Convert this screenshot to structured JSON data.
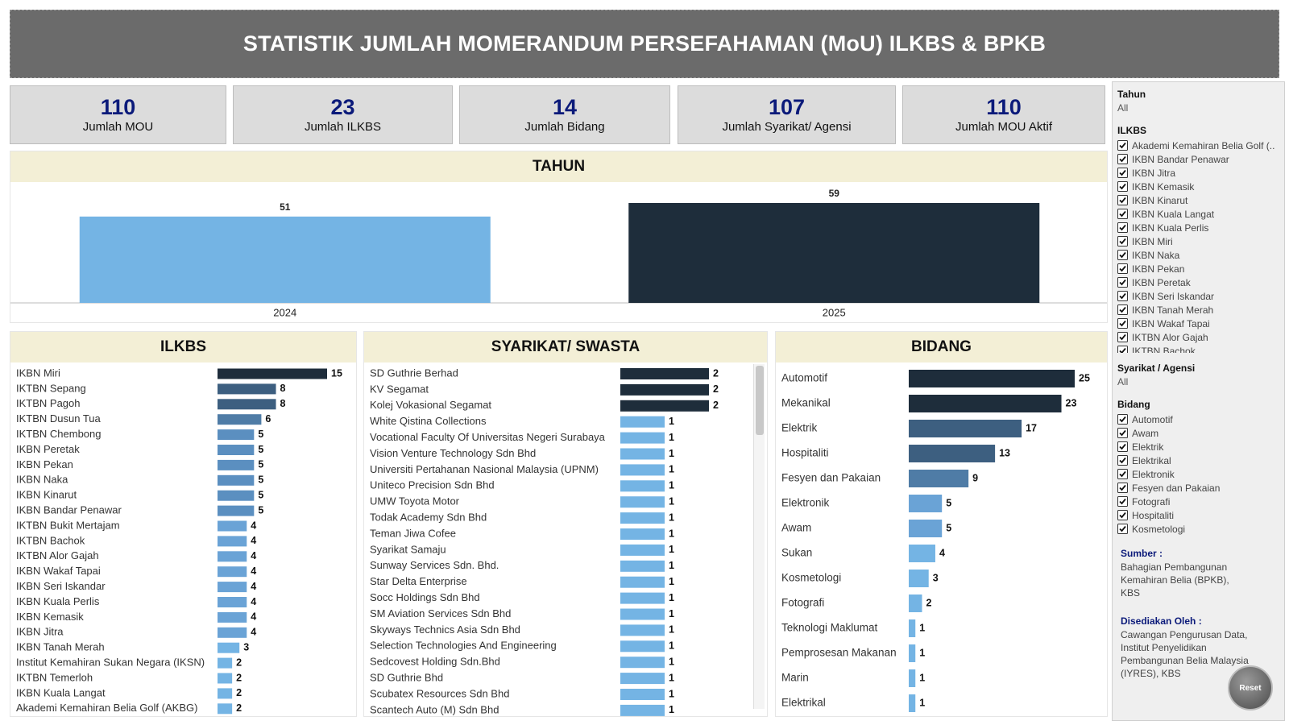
{
  "header": {
    "title": "STATISTIK JUMLAH MOMERANDUM PERSEFAHAMAN (MoU) ILKBS & BPKB"
  },
  "kpis": [
    {
      "value": 110,
      "label": "Jumlah MOU"
    },
    {
      "value": 23,
      "label": "Jumlah ILKBS"
    },
    {
      "value": 14,
      "label": "Jumlah Bidang"
    },
    {
      "value": 107,
      "label": "Jumlah Syarikat/ Agensi"
    },
    {
      "value": 110,
      "label": "Jumlah MOU Aktif"
    }
  ],
  "chart_data": [
    {
      "type": "bar",
      "orientation": "vertical",
      "title": "TAHUN",
      "categories": [
        "2024",
        "2025"
      ],
      "values": [
        51,
        59
      ],
      "colors": [
        "#74b4e4",
        "#1e2d3b"
      ]
    },
    {
      "type": "bar",
      "orientation": "horizontal",
      "title": "ILKBS",
      "categories": [
        "IKBN Miri",
        "IKTBN Sepang",
        "IKTBN Pagoh",
        "IKTBN Dusun Tua",
        "IKTBN Chembong",
        "IKBN Peretak",
        "IKBN Pekan",
        "IKBN Naka",
        "IKBN Kinarut",
        "IKBN Bandar Penawar",
        "IKTBN Bukit Mertajam",
        "IKTBN Bachok",
        "IKTBN Alor Gajah",
        "IKBN Wakaf Tapai",
        "IKBN Seri Iskandar",
        "IKBN Kuala Perlis",
        "IKBN Kemasik",
        "IKBN Jitra",
        "IKBN Tanah Merah",
        "Institut Kemahiran Sukan Negara (IKSN)",
        "IKTBN Temerloh",
        "IKBN Kuala Langat",
        "Akademi Kemahiran Belia Golf (AKBG)"
      ],
      "values": [
        15,
        8,
        8,
        6,
        5,
        5,
        5,
        5,
        5,
        5,
        4,
        4,
        4,
        4,
        4,
        4,
        4,
        4,
        3,
        2,
        2,
        2,
        2
      ],
      "colors": [
        "#1e2d3b",
        "#3d5f80",
        "#3d5f80",
        "#4f7ca6",
        "#5b8fc0",
        "#5b8fc0",
        "#5b8fc0",
        "#5b8fc0",
        "#5b8fc0",
        "#5b8fc0",
        "#6aa3d6",
        "#6aa3d6",
        "#6aa3d6",
        "#6aa3d6",
        "#6aa3d6",
        "#6aa3d6",
        "#6aa3d6",
        "#6aa3d6",
        "#74b4e4",
        "#74b4e4",
        "#74b4e4",
        "#74b4e4",
        "#74b4e4"
      ]
    },
    {
      "type": "bar",
      "orientation": "horizontal",
      "title": "SYARIKAT/ SWASTA",
      "categories": [
        "SD Guthrie Berhad",
        "KV Segamat",
        "Kolej Vokasional Segamat",
        "White Qistina Collections",
        "Vocational Faculty Of Universitas Negeri Surabaya",
        "Vision Venture Technology Sdn Bhd",
        "Universiti Pertahanan Nasional Malaysia (UPNM)",
        "Uniteco Precision Sdn Bhd",
        "UMW Toyota Motor",
        "Todak Academy Sdn Bhd",
        "Teman Jiwa Cofee",
        "Syarikat Samaju",
        "Sunway Services Sdn. Bhd.",
        "Star Delta Enterprise",
        "Socc Holdings Sdn Bhd",
        "SM Aviation Services Sdn Bhd",
        "Skyways Technics Asia Sdn Bhd",
        "Selection Technologies And Engineering",
        "Sedcovest Holding Sdn.Bhd",
        "SD Guthrie Bhd",
        "Scubatex Resources Sdn Bhd",
        "Scantech Auto (M) Sdn Bhd"
      ],
      "values": [
        2,
        2,
        2,
        1,
        1,
        1,
        1,
        1,
        1,
        1,
        1,
        1,
        1,
        1,
        1,
        1,
        1,
        1,
        1,
        1,
        1,
        1
      ],
      "colors": [
        "#1e2d3b",
        "#1e2d3b",
        "#1e2d3b",
        "#74b4e4",
        "#74b4e4",
        "#74b4e4",
        "#74b4e4",
        "#74b4e4",
        "#74b4e4",
        "#74b4e4",
        "#74b4e4",
        "#74b4e4",
        "#74b4e4",
        "#74b4e4",
        "#74b4e4",
        "#74b4e4",
        "#74b4e4",
        "#74b4e4",
        "#74b4e4",
        "#74b4e4",
        "#74b4e4",
        "#74b4e4"
      ]
    },
    {
      "type": "bar",
      "orientation": "horizontal",
      "title": "BIDANG",
      "categories": [
        "Automotif",
        "Mekanikal",
        "Elektrik",
        "Hospitaliti",
        "Fesyen dan Pakaian",
        "Elektronik",
        "Awam",
        "Sukan",
        "Kosmetologi",
        "Fotografi",
        "Teknologi Maklumat",
        "Pemprosesan Makanan",
        "Marin",
        "Elektrikal"
      ],
      "values": [
        25,
        23,
        17,
        13,
        9,
        5,
        5,
        4,
        3,
        2,
        1,
        1,
        1,
        1
      ],
      "colors": [
        "#1e2d3b",
        "#1e2d3b",
        "#3d5f80",
        "#3d5f80",
        "#4f7ca6",
        "#6aa3d6",
        "#6aa3d6",
        "#74b4e4",
        "#74b4e4",
        "#74b4e4",
        "#74b4e4",
        "#74b4e4",
        "#74b4e4",
        "#74b4e4"
      ]
    }
  ],
  "filters": {
    "tahun": {
      "label": "Tahun",
      "value": "All"
    },
    "ilkbs": {
      "label": "ILKBS",
      "items": [
        "Akademi Kemahiran Belia Golf (..",
        "IKBN Bandar Penawar",
        "IKBN Jitra",
        "IKBN Kemasik",
        "IKBN Kinarut",
        "IKBN Kuala Langat",
        "IKBN Kuala Perlis",
        "IKBN Miri",
        "IKBN Naka",
        "IKBN Pekan",
        "IKBN Peretak",
        "IKBN Seri Iskandar",
        "IKBN Tanah Merah",
        "IKBN Wakaf Tapai",
        "IKTBN Alor Gajah",
        "IKTBN Bachok"
      ]
    },
    "syarikat": {
      "label": "Syarikat / Agensi",
      "value": "All"
    },
    "bidang": {
      "label": "Bidang",
      "items": [
        "Automotif",
        "Awam",
        "Elektrik",
        "Elektrikal",
        "Elektronik",
        "Fesyen dan Pakaian",
        "Fotografi",
        "Hospitaliti",
        "Kosmetologi"
      ]
    }
  },
  "sumber": {
    "label": "Sumber :",
    "text": "Bahagian Pembangunan Kemahiran Belia (BPKB), KBS"
  },
  "disediakan": {
    "label": "Disediakan Oleh :",
    "text": "Cawangan Pengurusan Data, Institut Penyelidikan Pembangunan Belia Malaysia (IYRES), KBS"
  },
  "reset": "Reset"
}
